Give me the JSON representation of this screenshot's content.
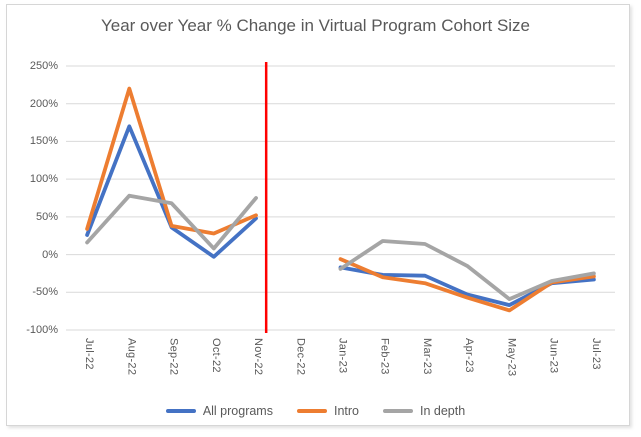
{
  "chart_data": {
    "type": "line",
    "title": "Year over Year % Change in Virtual Program Cohort Size",
    "categories": [
      "Jul-22",
      "Aug-22",
      "Sep-22",
      "Oct-22",
      "Nov-22",
      "Dec-22",
      "Jan-23",
      "Feb-23",
      "Mar-23",
      "Apr-23",
      "May-23",
      "Jun-23",
      "Jul-23"
    ],
    "series": [
      {
        "name": "All programs",
        "color": "#4472C4",
        "values": [
          26,
          170,
          36,
          -3,
          48,
          null,
          -17,
          -27,
          -28,
          -53,
          -67,
          -38,
          -33
        ]
      },
      {
        "name": "Intro",
        "color": "#ED7D31",
        "values": [
          34,
          220,
          38,
          28,
          52,
          null,
          -6,
          -30,
          -38,
          -57,
          -74,
          -37,
          -29
        ]
      },
      {
        "name": "In depth",
        "color": "#A5A5A5",
        "values": [
          16,
          78,
          68,
          8,
          75,
          null,
          -19,
          18,
          14,
          -15,
          -59,
          -35,
          -25
        ]
      }
    ],
    "data_gap_category": "Dec-22",
    "ylim": [
      -100,
      250
    ],
    "y_ticks": {
      "values": [
        250,
        200,
        150,
        100,
        50,
        0,
        -50,
        -100
      ],
      "labels": [
        "250%",
        "200%",
        "150%",
        "100%",
        "50%",
        "0%",
        "-50%",
        "-100%"
      ]
    },
    "grid": true,
    "legend_position": "bottom",
    "annotation": {
      "type": "vertical_line",
      "between_categories": [
        "Nov-22",
        "Dec-22"
      ],
      "x_index": 4.24,
      "color": "#FF0000"
    },
    "colors": {
      "gridline": "#D9D9D9",
      "title_text": "#595959",
      "axis_text": "#595959",
      "legend_text": "#595959",
      "frame_border": "#D6D6D6",
      "background": "#FFFFFF"
    }
  }
}
